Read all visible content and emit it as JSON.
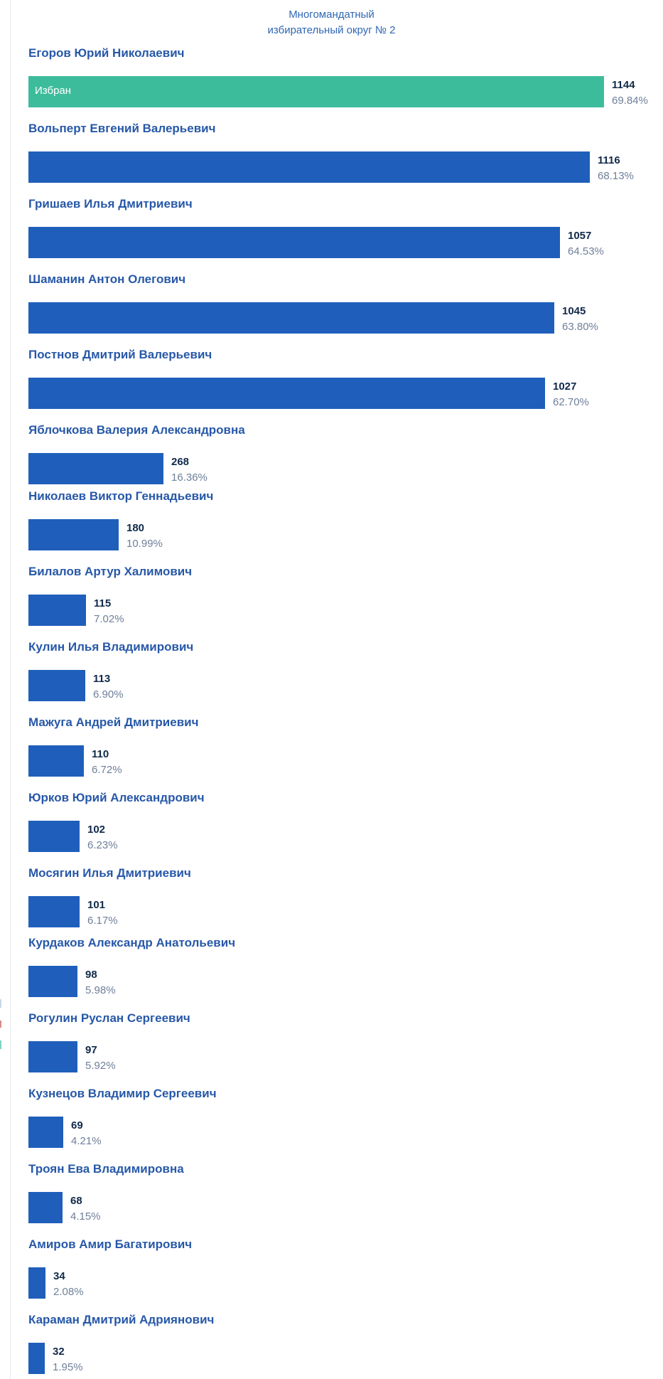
{
  "district": {
    "line1": "Многомандатный",
    "line2": "избирательный округ № 2"
  },
  "colors": {
    "bar": "#1f5fbb",
    "elected": "#3dbc9c",
    "name": "#2758a8",
    "votes": "#102a4a",
    "percent": "#6e7f99"
  },
  "chart_data": {
    "type": "bar",
    "orientation": "horizontal",
    "title": "Многомандатный избирательный округ № 2",
    "categories": [
      "Егоров Юрий Николаевич",
      "Вольперт Евгений Валерьевич",
      "Гришаев Илья Дмитриевич",
      "Шаманин Антон Олегович",
      "Постнов Дмитрий Валерьевич",
      "Яблочкова Валерия Александровна",
      "Николаев Виктор Геннадьевич",
      "Билалов Артур Халимович",
      "Кулин Илья Владимирович",
      "Мажуга Андрей Дмитриевич",
      "Юрков Юрий Александрович",
      "Мосягин Илья Дмитриевич",
      "Курдаков Александр Анатольевич",
      "Рогулин Руслан Сергеевич",
      "Кузнецов Владимир Сергеевич",
      "Троян Ева Владимировна",
      "Амиров Амир Багатирович",
      "Караман Дмитрий Адриянович"
    ],
    "values": [
      1144,
      1116,
      1057,
      1045,
      1027,
      268,
      180,
      115,
      113,
      110,
      102,
      101,
      98,
      97,
      69,
      68,
      34,
      32
    ],
    "value_labels": [
      "1144",
      "1116",
      "1057",
      "1045",
      "1027",
      "268",
      "180",
      "115",
      "113",
      "110",
      "102",
      "101",
      "98",
      "97",
      "69",
      "68",
      "34",
      "32"
    ],
    "percents": [
      "69.84%",
      "68.13%",
      "64.53%",
      "63.80%",
      "62.70%",
      "16.36%",
      "10.99%",
      "7.02%",
      "6.90%",
      "6.72%",
      "6.23%",
      "6.17%",
      "5.98%",
      "5.92%",
      "4.21%",
      "4.15%",
      "2.08%",
      "1.95%"
    ],
    "percent_values": [
      69.84,
      68.13,
      64.53,
      63.8,
      62.7,
      16.36,
      10.99,
      7.02,
      6.9,
      6.72,
      6.23,
      6.17,
      5.98,
      5.92,
      4.21,
      4.15,
      2.08,
      1.95
    ],
    "bar_texts": [
      "Избран",
      "",
      "",
      "",
      "",
      "",
      "",
      "",
      "",
      "",
      "",
      "",
      "",
      "",
      "",
      "",
      "",
      ""
    ],
    "elected": [
      true,
      false,
      false,
      false,
      false,
      false,
      false,
      false,
      false,
      false,
      false,
      false,
      false,
      false,
      false,
      false,
      false,
      false
    ]
  }
}
